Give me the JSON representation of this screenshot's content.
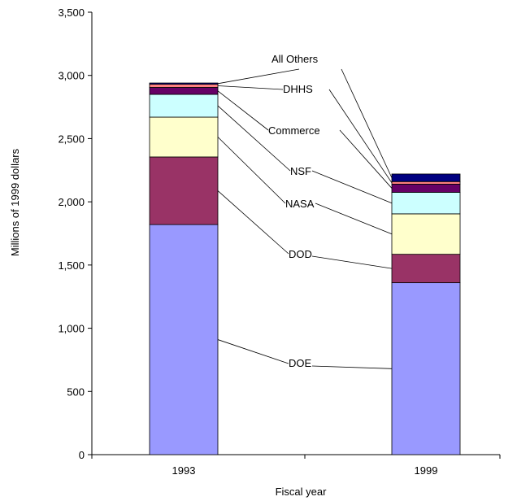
{
  "chart_data": {
    "type": "bar",
    "stacked": true,
    "title": "",
    "xlabel": "Fiscal year",
    "ylabel": "Millions of 1999 dollars",
    "ylim": [
      0,
      3500
    ],
    "yticks": [
      0,
      500,
      1000,
      1500,
      2000,
      2500,
      3000,
      3500
    ],
    "ytick_labels": [
      "0",
      "500",
      "1,000",
      "1,500",
      "2,000",
      "2,500",
      "3,000",
      "3,500"
    ],
    "categories": [
      "1993",
      "1999"
    ],
    "grid": false,
    "legend": "callout labels with leader lines",
    "series": [
      {
        "name": "DOE",
        "color": "#9999ff",
        "values": [
          1820,
          1360
        ]
      },
      {
        "name": "DOD",
        "color": "#993366",
        "values": [
          535,
          225
        ]
      },
      {
        "name": "NASA",
        "color": "#ffffcc",
        "values": [
          315,
          320
        ]
      },
      {
        "name": "NSF",
        "color": "#ccffff",
        "values": [
          180,
          170
        ]
      },
      {
        "name": "Commerce",
        "color": "#660066",
        "values": [
          55,
          65
        ]
      },
      {
        "name": "DHHS",
        "color": "#ff8080",
        "values": [
          25,
          20
        ]
      },
      {
        "name": "All Others",
        "color": "#000080",
        "values": [
          10,
          60
        ]
      }
    ]
  }
}
